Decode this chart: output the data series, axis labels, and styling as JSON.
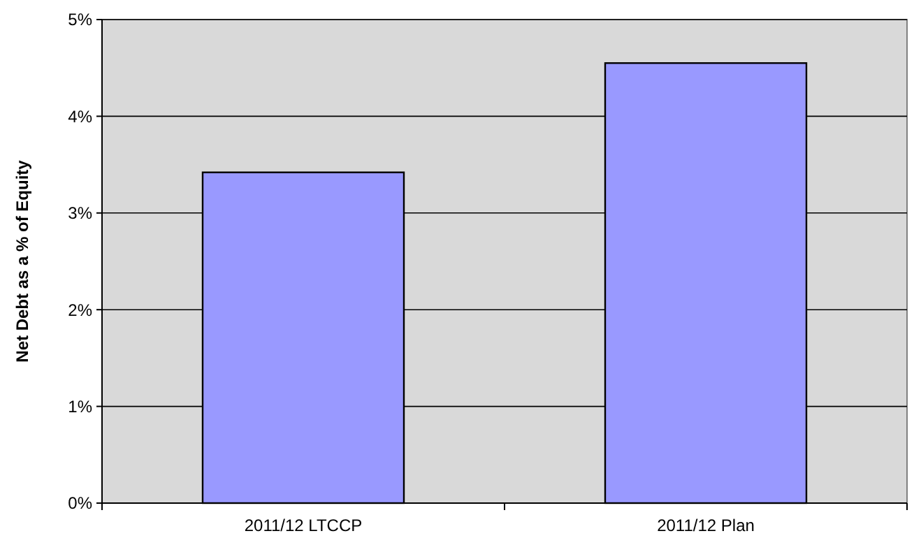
{
  "chart_data": {
    "type": "bar",
    "ylabel": "Net Debt as a % of Equity",
    "categories": [
      "2011/12 LTCCP",
      "2011/12 Plan"
    ],
    "values": [
      3.42,
      4.55
    ],
    "color": "#9999ff",
    "ylim": [
      0,
      5
    ],
    "yticks": [
      {
        "value": 0,
        "label": "0%"
      },
      {
        "value": 1,
        "label": "1%"
      },
      {
        "value": 2,
        "label": "2%"
      },
      {
        "value": 3,
        "label": "3%"
      },
      {
        "value": 4,
        "label": "4%"
      },
      {
        "value": 5,
        "label": "5%"
      }
    ],
    "grid": "y"
  }
}
